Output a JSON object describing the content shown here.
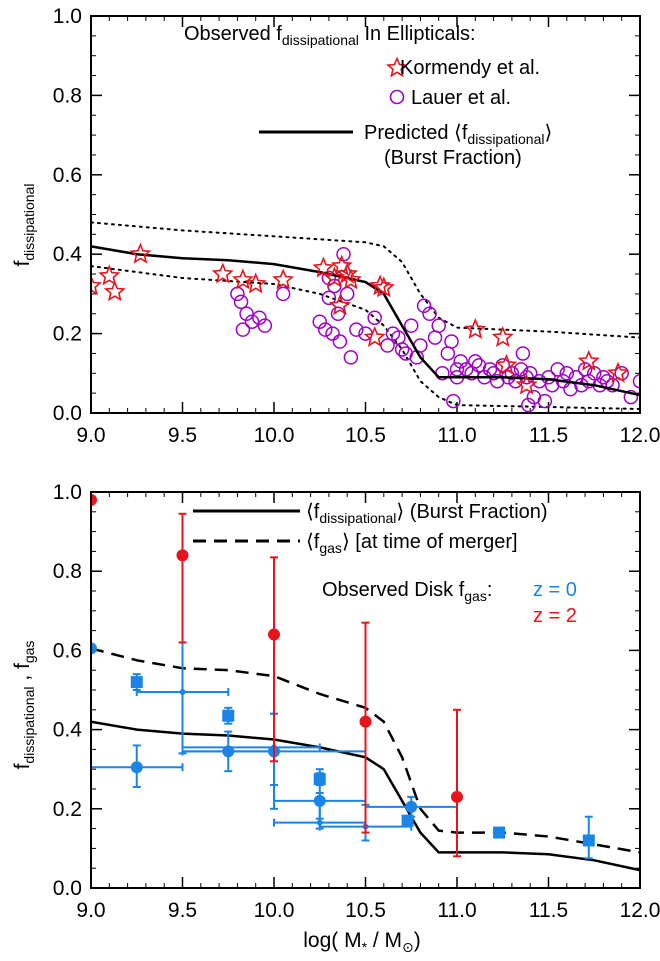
{
  "colors": {
    "axis": "#000000",
    "star": "#e8141c",
    "circle": "#a000c8",
    "blue": "#1a85e6",
    "red": "#e8141c"
  },
  "chart_data": [
    {
      "type": "scatter",
      "panel": "top",
      "xlim": [
        9.0,
        12.0
      ],
      "ylim": [
        0.0,
        1.0
      ],
      "xticks": [
        "9.0",
        "9.5",
        "10.0",
        "10.5",
        "11.0",
        "11.5",
        "12.0"
      ],
      "yticks": [
        "0.0",
        "0.2",
        "0.4",
        "0.6",
        "0.8",
        "1.0"
      ],
      "ylabel": {
        "main": "f",
        "sub": "dissipational"
      },
      "legend": {
        "heading_pre": "Observed f",
        "heading_sub": "dissipational",
        "heading_post": " In Ellipticals:",
        "series1": "Kormendy et al.",
        "series2": "Lauer et al.",
        "line_pre": "Predicted ⟨f",
        "line_sub": "dissipational",
        "line_post": "⟩",
        "line_note": "(Burst Fraction)"
      },
      "predicted": {
        "x": [
          9.0,
          9.25,
          9.5,
          9.75,
          10.0,
          10.25,
          10.5,
          10.6,
          10.7,
          10.8,
          10.9,
          11.0,
          11.25,
          11.5,
          11.75,
          12.0
        ],
        "y": [
          0.42,
          0.4,
          0.39,
          0.385,
          0.375,
          0.355,
          0.33,
          0.3,
          0.22,
          0.14,
          0.09,
          0.09,
          0.09,
          0.085,
          0.07,
          0.045
        ]
      },
      "upper": {
        "x": [
          9.0,
          9.5,
          10.0,
          10.5,
          10.6,
          10.7,
          10.8,
          10.9,
          11.0,
          11.5,
          12.0
        ],
        "y": [
          0.48,
          0.46,
          0.445,
          0.43,
          0.42,
          0.38,
          0.3,
          0.24,
          0.215,
          0.205,
          0.19
        ]
      },
      "lower": {
        "x": [
          9.0,
          9.5,
          10.0,
          10.25,
          10.5,
          10.6,
          10.7,
          10.8,
          10.9,
          11.0,
          11.5,
          12.0
        ],
        "y": [
          0.37,
          0.34,
          0.325,
          0.3,
          0.26,
          0.22,
          0.16,
          0.08,
          0.04,
          0.02,
          0.015,
          0.01
        ]
      },
      "kormendy": {
        "x": [
          9.0,
          9.1,
          9.13,
          9.27,
          9.72,
          9.83,
          9.9,
          10.05,
          10.27,
          10.33,
          10.37,
          10.4,
          10.42,
          10.36,
          10.58,
          10.6,
          10.55,
          11.1,
          11.25,
          11.27,
          11.38,
          11.72,
          11.88
        ],
        "y": [
          0.32,
          0.345,
          0.305,
          0.4,
          0.35,
          0.335,
          0.325,
          0.335,
          0.365,
          0.34,
          0.37,
          0.35,
          0.335,
          0.27,
          0.32,
          0.315,
          0.19,
          0.21,
          0.19,
          0.12,
          0.07,
          0.13,
          0.1
        ]
      },
      "lauer": {
        "x": [
          9.82,
          9.85,
          9.88,
          9.92,
          9.95,
          9.8,
          9.83,
          10.05,
          10.25,
          10.28,
          10.3,
          10.32,
          10.35,
          10.38,
          10.4,
          10.36,
          10.3,
          10.33,
          10.42,
          10.45,
          10.5,
          10.55,
          10.62,
          10.65,
          10.68,
          10.7,
          10.72,
          10.75,
          10.78,
          10.8,
          10.82,
          10.85,
          10.88,
          10.9,
          10.92,
          10.95,
          10.97,
          11.0,
          11.02,
          11.05,
          11.08,
          11.1,
          11.12,
          11.15,
          11.18,
          11.2,
          11.22,
          11.25,
          11.28,
          11.3,
          11.32,
          11.35,
          11.38,
          11.4,
          11.42,
          11.45,
          11.48,
          11.5,
          11.52,
          11.55,
          11.58,
          11.6,
          11.62,
          11.65,
          11.68,
          11.7,
          11.72,
          11.75,
          11.78,
          11.8,
          11.82,
          11.85,
          11.9,
          11.95,
          12.0,
          10.98,
          11.0,
          11.36,
          11.39
        ],
        "y": [
          0.28,
          0.25,
          0.23,
          0.24,
          0.22,
          0.3,
          0.21,
          0.3,
          0.23,
          0.21,
          0.29,
          0.2,
          0.25,
          0.4,
          0.3,
          0.18,
          0.34,
          0.32,
          0.14,
          0.21,
          0.2,
          0.24,
          0.17,
          0.2,
          0.19,
          0.16,
          0.15,
          0.22,
          0.14,
          0.17,
          0.27,
          0.25,
          0.19,
          0.22,
          0.1,
          0.15,
          0.18,
          0.09,
          0.13,
          0.11,
          0.1,
          0.13,
          0.12,
          0.09,
          0.11,
          0.1,
          0.08,
          0.12,
          0.09,
          0.1,
          0.08,
          0.11,
          0.09,
          0.1,
          0.04,
          0.08,
          0.03,
          0.09,
          0.07,
          0.11,
          0.08,
          0.1,
          0.06,
          0.09,
          0.07,
          0.11,
          0.08,
          0.1,
          0.07,
          0.09,
          0.08,
          0.07,
          0.1,
          0.04,
          0.08,
          0.03,
          0.11,
          0.15,
          0.02
        ]
      }
    },
    {
      "type": "scatter",
      "panel": "bottom",
      "xlim": [
        9.0,
        12.0
      ],
      "ylim": [
        0.0,
        1.0
      ],
      "xticks": [
        "9.0",
        "9.5",
        "10.0",
        "10.5",
        "11.0",
        "11.5",
        "12.0"
      ],
      "yticks": [
        "0.0",
        "0.2",
        "0.4",
        "0.6",
        "0.8",
        "1.0"
      ],
      "ylabel": {
        "a": "f",
        "a_sub": "dissipational",
        "mid": " , f",
        "b_sub": "gas"
      },
      "xlabel": {
        "pre": "log( M",
        "sub1": "*",
        "mid": " / M",
        "sub2": "⊙",
        "post": ")"
      },
      "legend": {
        "solid_pre": "⟨f",
        "solid_sub": "dissipational",
        "solid_post": "⟩ (Burst Fraction)",
        "dashed_pre": "⟨f",
        "dashed_sub": "gas",
        "dashed_post": "⟩ [at time of merger]",
        "obs_pre": "Observed Disk f",
        "obs_sub": "gas",
        "obs_post": ":",
        "z0": "z = 0",
        "z2": "z = 2"
      },
      "burst_fraction": {
        "x": [
          9.0,
          9.25,
          9.5,
          9.75,
          10.0,
          10.25,
          10.5,
          10.6,
          10.7,
          10.8,
          10.9,
          11.0,
          11.25,
          11.5,
          11.75,
          12.0
        ],
        "y": [
          0.42,
          0.4,
          0.39,
          0.385,
          0.375,
          0.355,
          0.33,
          0.3,
          0.22,
          0.14,
          0.09,
          0.09,
          0.09,
          0.085,
          0.07,
          0.045
        ]
      },
      "gas_fraction": {
        "x": [
          9.0,
          9.25,
          9.5,
          9.75,
          10.0,
          10.25,
          10.5,
          10.6,
          10.7,
          10.8,
          10.9,
          11.0,
          11.25,
          11.5,
          11.75,
          12.0
        ],
        "y": [
          0.605,
          0.575,
          0.555,
          0.55,
          0.535,
          0.49,
          0.455,
          0.42,
          0.33,
          0.2,
          0.145,
          0.14,
          0.14,
          0.13,
          0.11,
          0.09
        ]
      },
      "blue_circles": [
        {
          "x": 9.25,
          "y": 0.305,
          "xlo": 9.0,
          "xhi": 9.5,
          "ylo": 0.255,
          "yhi": 0.36
        },
        {
          "x": 9.75,
          "y": 0.345,
          "xlo": 9.5,
          "xhi": 10.0,
          "ylo": 0.295,
          "yhi": 0.395
        },
        {
          "x": 10.0,
          "y": 0.345,
          "xlo": 9.5,
          "xhi": 10.5,
          "ylo": 0.2,
          "yhi": 0.44
        },
        {
          "x": 10.25,
          "y": 0.22,
          "xlo": 10.0,
          "xhi": 10.5,
          "ylo": 0.175,
          "yhi": 0.24
        },
        {
          "x": 10.75,
          "y": 0.205,
          "xlo": 10.5,
          "xhi": 11.0,
          "ylo": 0.18,
          "yhi": 0.23
        }
      ],
      "blue_diamonds": [
        {
          "x": 9.5,
          "y": 0.495,
          "xlo": 9.25,
          "xhi": 9.75,
          "ylo": 0.34,
          "yhi": 0.62
        },
        {
          "x": 10.0,
          "y": 0.355,
          "xlo": 9.5,
          "xhi": 10.25,
          "ylo": 0.26,
          "yhi": 0.44
        },
        {
          "x": 10.25,
          "y": 0.165,
          "xlo": 10.0,
          "xhi": 10.5,
          "ylo": 0.15,
          "yhi": 0.3
        },
        {
          "x": 10.5,
          "y": 0.155,
          "xlo": 10.25,
          "xhi": 10.75,
          "ylo": 0.12,
          "yhi": 0.21
        }
      ],
      "blue_squares": [
        {
          "x": 9.25,
          "y": 0.52,
          "ylo": 0.5,
          "yhi": 0.54
        },
        {
          "x": 9.75,
          "y": 0.435,
          "ylo": 0.415,
          "yhi": 0.455
        },
        {
          "x": 10.25,
          "y": 0.275,
          "ylo": 0.26,
          "yhi": 0.29
        },
        {
          "x": 10.73,
          "y": 0.17,
          "ylo": 0.16,
          "yhi": 0.18
        },
        {
          "x": 11.23,
          "y": 0.14,
          "ylo": 0.135,
          "yhi": 0.145
        },
        {
          "x": 11.72,
          "y": 0.12,
          "ylo": 0.075,
          "yhi": 0.18
        }
      ],
      "blue_edge": {
        "x": 9.0,
        "y": 0.605
      },
      "red_z2": [
        {
          "x": 9.0,
          "y": 0.98,
          "ylo": 0.98,
          "yhi": 0.98
        },
        {
          "x": 9.5,
          "y": 0.84,
          "ylo": 0.62,
          "yhi": 0.945
        },
        {
          "x": 10.0,
          "y": 0.64,
          "ylo": 0.32,
          "yhi": 0.835
        },
        {
          "x": 10.5,
          "y": 0.42,
          "ylo": 0.14,
          "yhi": 0.67
        },
        {
          "x": 11.0,
          "y": 0.23,
          "ylo": 0.08,
          "yhi": 0.45
        }
      ]
    }
  ]
}
